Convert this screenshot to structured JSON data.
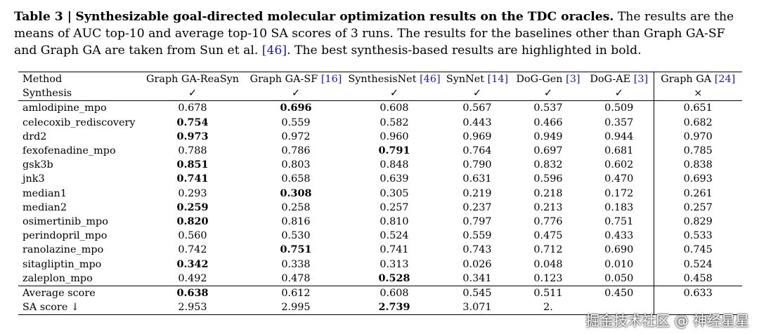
{
  "caption": {
    "label": "Table 3 |",
    "title": "Synthesizable goal-directed molecular optimization results on the TDC oracles.",
    "body_1": "The results are the means of AUC top-10 and average top-10 SA scores of 3 runs. The results for the baselines other than Graph GA-SF and Graph GA are taken from Sun et al.",
    "ref": "[46]",
    "body_2": ". The best synthesis-based results are highlighted in bold."
  },
  "table": {
    "header_label": "Method",
    "synthesis_label": "Synthesis",
    "columns": [
      {
        "name": "Graph GA-ReaSyn",
        "ref": "",
        "synthesis": "✓"
      },
      {
        "name": "Graph GA-SF",
        "ref": "[16]",
        "synthesis": "✓"
      },
      {
        "name": "SynthesisNet",
        "ref": "[46]",
        "synthesis": "✓"
      },
      {
        "name": "SynNet",
        "ref": "[14]",
        "synthesis": "✓"
      },
      {
        "name": "DoG-Gen",
        "ref": "[3]",
        "synthesis": "✓"
      },
      {
        "name": "DoG-AE",
        "ref": "[3]",
        "synthesis": "✓"
      },
      {
        "name": "Graph GA",
        "ref": "[24]",
        "synthesis": "×"
      }
    ],
    "rows": [
      {
        "name": "amlodipine_mpo",
        "values": [
          "0.678",
          "0.696",
          "0.608",
          "0.567",
          "0.537",
          "0.509",
          "0.651"
        ],
        "bold": 1
      },
      {
        "name": "celecoxib_rediscovery",
        "values": [
          "0.754",
          "0.559",
          "0.582",
          "0.443",
          "0.466",
          "0.357",
          "0.682"
        ],
        "bold": 0
      },
      {
        "name": "drd2",
        "values": [
          "0.973",
          "0.972",
          "0.960",
          "0.969",
          "0.949",
          "0.944",
          "0.970"
        ],
        "bold": 0
      },
      {
        "name": "fexofenadine_mpo",
        "values": [
          "0.788",
          "0.786",
          "0.791",
          "0.764",
          "0.697",
          "0.681",
          "0.785"
        ],
        "bold": 2
      },
      {
        "name": "gsk3b",
        "values": [
          "0.851",
          "0.803",
          "0.848",
          "0.790",
          "0.832",
          "0.602",
          "0.838"
        ],
        "bold": 0
      },
      {
        "name": "jnk3",
        "values": [
          "0.741",
          "0.658",
          "0.639",
          "0.631",
          "0.596",
          "0.470",
          "0.693"
        ],
        "bold": 0
      },
      {
        "name": "median1",
        "values": [
          "0.293",
          "0.308",
          "0.305",
          "0.219",
          "0.218",
          "0.172",
          "0.261"
        ],
        "bold": 1
      },
      {
        "name": "median2",
        "values": [
          "0.259",
          "0.258",
          "0.257",
          "0.237",
          "0.213",
          "0.183",
          "0.257"
        ],
        "bold": 0
      },
      {
        "name": "osimertinib_mpo",
        "values": [
          "0.820",
          "0.816",
          "0.810",
          "0.797",
          "0.776",
          "0.751",
          "0.829"
        ],
        "bold": 0
      },
      {
        "name": "perindopril_mpo",
        "values": [
          "0.560",
          "0.530",
          "0.524",
          "0.559",
          "0.475",
          "0.433",
          "0.533"
        ],
        "bold": -1
      },
      {
        "name": "ranolazine_mpo",
        "values": [
          "0.742",
          "0.751",
          "0.741",
          "0.743",
          "0.712",
          "0.690",
          "0.745"
        ],
        "bold": 1
      },
      {
        "name": "sitagliptin_mpo",
        "values": [
          "0.342",
          "0.338",
          "0.313",
          "0.026",
          "0.048",
          "0.010",
          "0.524"
        ],
        "bold": 0
      },
      {
        "name": "zaleplon_mpo",
        "values": [
          "0.492",
          "0.478",
          "0.528",
          "0.341",
          "0.123",
          "0.050",
          "0.458"
        ],
        "bold": 2
      }
    ],
    "summary": [
      {
        "name": "Average score",
        "values": [
          "0.638",
          "0.612",
          "0.608",
          "0.545",
          "0.511",
          "0.450",
          "0.633"
        ],
        "bold": 0
      },
      {
        "name": "SA score ↓",
        "values": [
          "2.953",
          "2.995",
          "2.739",
          "3.071",
          "2.",
          "",
          ""
        ],
        "bold": 2
      }
    ]
  },
  "watermark": "掘金技术社区 @ 神经星星"
}
